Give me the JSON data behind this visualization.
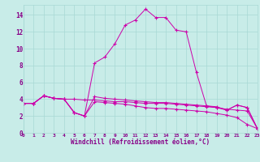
{
  "bg_color": "#c8ece8",
  "grid_color": "#a8d8d4",
  "line_color": "#cc00aa",
  "xlabel": "Windchill (Refroidissement éolien,°C)",
  "xlim": [
    0,
    23
  ],
  "ylim": [
    0,
    15.2
  ],
  "xticks": [
    0,
    1,
    2,
    3,
    4,
    5,
    6,
    7,
    8,
    9,
    10,
    11,
    12,
    13,
    14,
    15,
    16,
    17,
    18,
    19,
    20,
    21,
    22,
    23
  ],
  "yticks": [
    0,
    2,
    4,
    6,
    8,
    10,
    12,
    14
  ],
  "series1_y": [
    3.5,
    3.5,
    4.4,
    4.1,
    4.0,
    2.4,
    2.0,
    8.3,
    9.0,
    10.6,
    12.8,
    13.4,
    14.7,
    13.7,
    13.7,
    12.2,
    12.0,
    7.2,
    3.2,
    3.0,
    2.7,
    3.3,
    3.0,
    0.5
  ],
  "series2_y": [
    3.5,
    3.5,
    4.4,
    4.1,
    4.0,
    2.4,
    2.0,
    4.3,
    4.1,
    4.0,
    3.9,
    3.8,
    3.7,
    3.6,
    3.6,
    3.5,
    3.4,
    3.3,
    3.2,
    3.1,
    2.7,
    3.3,
    3.0,
    0.5
  ],
  "series3_y": [
    3.5,
    3.5,
    4.4,
    4.1,
    4.0,
    2.4,
    2.0,
    3.7,
    3.6,
    3.5,
    3.4,
    3.2,
    3.0,
    2.9,
    2.9,
    2.8,
    2.7,
    2.6,
    2.5,
    2.3,
    2.1,
    1.8,
    1.0,
    0.5
  ],
  "series4_y": [
    3.5,
    3.5,
    4.4,
    4.1,
    4.0,
    4.0,
    3.9,
    3.9,
    3.8,
    3.7,
    3.7,
    3.6,
    3.5,
    3.5,
    3.5,
    3.4,
    3.3,
    3.2,
    3.1,
    3.0,
    2.8,
    2.7,
    2.6,
    0.5
  ]
}
